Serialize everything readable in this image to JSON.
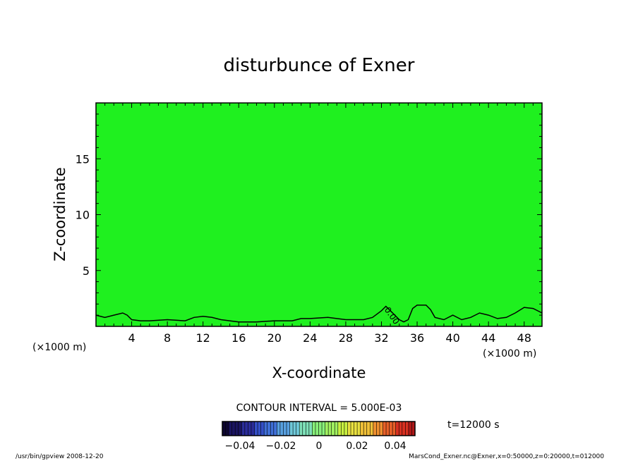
{
  "chart_data": {
    "type": "heatmap",
    "title": "disturbunce of Exner",
    "xlabel": "X-coordinate",
    "ylabel": "Z-coordinate",
    "x_unit_left": "(×1000 m)",
    "x_unit_right": "(×1000 m)",
    "xlim": [
      0,
      50
    ],
    "ylim": [
      0,
      20
    ],
    "x_ticks": [
      4,
      8,
      12,
      16,
      20,
      24,
      28,
      32,
      36,
      40,
      44,
      48
    ],
    "y_ticks": [
      5,
      10,
      15
    ],
    "fill_color": "#1ff01f",
    "contour_interval_text": "CONTOUR INTERVAL = 5.000E-03",
    "time_text": "t=12000 s",
    "contour_label": "0.00",
    "zero_contour": {
      "x": [
        0,
        1,
        2,
        3,
        3.5,
        4,
        5,
        6,
        8,
        10,
        11,
        12,
        13,
        14,
        16,
        18,
        20,
        22,
        23,
        24,
        26,
        28,
        30,
        31,
        32,
        32.5,
        33,
        34,
        34.5,
        35,
        35.5,
        36,
        37,
        37.5,
        38,
        39,
        40,
        41,
        42,
        43,
        44,
        45,
        46,
        47,
        48,
        49,
        50
      ],
      "z": [
        1.0,
        0.8,
        1.0,
        1.2,
        1.0,
        0.6,
        0.5,
        0.5,
        0.6,
        0.5,
        0.8,
        0.9,
        0.8,
        0.6,
        0.4,
        0.4,
        0.5,
        0.5,
        0.7,
        0.7,
        0.8,
        0.6,
        0.6,
        0.8,
        1.4,
        1.8,
        1.4,
        0.6,
        0.4,
        0.6,
        1.6,
        1.9,
        1.9,
        1.5,
        0.8,
        0.6,
        1.0,
        0.6,
        0.8,
        1.2,
        1.0,
        0.7,
        0.8,
        1.2,
        1.7,
        1.6,
        1.2
      ]
    },
    "colorbar": {
      "tick_labels": [
        "−0.04",
        "−0.02",
        "0",
        "0.02",
        "0.04"
      ],
      "colors": [
        "#0d0630",
        "#1a1460",
        "#2a2c9a",
        "#3450c8",
        "#4070d8",
        "#58a0e0",
        "#6ec8d8",
        "#7ee0b8",
        "#88f07a",
        "#a0f060",
        "#c8f040",
        "#e8e040",
        "#f0c038",
        "#f09030",
        "#e86028",
        "#d83020",
        "#b01818"
      ]
    }
  },
  "footer": {
    "left": "/usr/bin/gpview  2008-12-20",
    "right": "MarsCond_Exner.nc@Exner,x=0:50000,z=0:20000,t=012000"
  }
}
